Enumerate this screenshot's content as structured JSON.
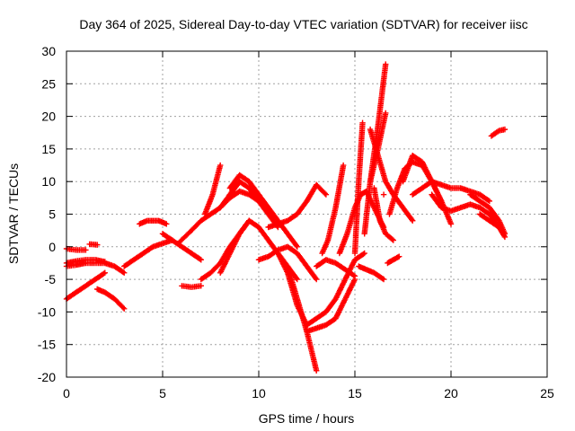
{
  "chart_data": {
    "type": "scatter",
    "title": "Day 364 of 2025, Sidereal Day-to-day VTEC variation (SDTVAR) for receiver iisc",
    "xlabel": "GPS time / hours",
    "ylabel": "SDTVAR / TECUs",
    "xlim": [
      0,
      25
    ],
    "ylim": [
      -20,
      30
    ],
    "xticks": [
      0,
      5,
      10,
      15,
      20,
      25
    ],
    "yticks": [
      -20,
      -15,
      -10,
      -5,
      0,
      5,
      10,
      15,
      20,
      25,
      30
    ],
    "xtick_labels": [
      "0",
      "5",
      "10",
      "15",
      "20",
      "25"
    ],
    "ytick_labels": [
      "-20",
      "-15",
      "-10",
      "-5",
      "0",
      "5",
      "10",
      "15",
      "20",
      "25",
      "30"
    ],
    "grid": true,
    "marker": "plus",
    "color": "#ff0000",
    "series": [
      {
        "x": [
          0.0,
          0.5,
          1.0,
          1.5,
          2.0
        ],
        "y": [
          -8.0,
          -7.0,
          -6.0,
          -5.0,
          -4.0
        ]
      },
      {
        "x": [
          0.0,
          0.5,
          1.0,
          1.5,
          2.0,
          2.5,
          3.0
        ],
        "y": [
          -3.0,
          -2.8,
          -2.5,
          -2.5,
          -2.5,
          -3.0,
          -4.0
        ]
      },
      {
        "x": [
          0.0,
          0.5,
          1.0,
          1.5,
          2.0
        ],
        "y": [
          -2.5,
          -2.2,
          -2.0,
          -2.0,
          -2.3
        ]
      },
      {
        "x": [
          0.0,
          0.5,
          1.0
        ],
        "y": [
          -0.3,
          -0.5,
          -0.5
        ]
      },
      {
        "x": [
          1.2,
          1.6
        ],
        "y": [
          0.4,
          0.3
        ]
      },
      {
        "x": [
          1.6,
          2.0,
          2.5,
          3.0
        ],
        "y": [
          -6.5,
          -7.0,
          -8.0,
          -9.5
        ]
      },
      {
        "x": [
          3.0,
          3.5,
          4.0,
          4.5,
          5.0,
          5.5
        ],
        "y": [
          -3.0,
          -2.0,
          -1.0,
          0.0,
          0.5,
          1.0
        ]
      },
      {
        "x": [
          3.8,
          4.2,
          4.8,
          5.2
        ],
        "y": [
          3.5,
          4.0,
          4.0,
          3.5
        ]
      },
      {
        "x": [
          5.0,
          5.5,
          6.0,
          6.5,
          7.0
        ],
        "y": [
          2.0,
          1.0,
          0.0,
          -1.0,
          -2.0
        ]
      },
      {
        "x": [
          6.0,
          6.5,
          7.0
        ],
        "y": [
          -6.0,
          -6.2,
          -6.0
        ]
      },
      {
        "x": [
          7.0,
          7.5,
          8.0,
          8.5,
          9.0,
          9.5
        ],
        "y": [
          -5.0,
          -4.0,
          -2.5,
          0.0,
          2.0,
          4.0
        ]
      },
      {
        "x": [
          5.8,
          6.5,
          7.0,
          7.5,
          8.0,
          8.5,
          9.0
        ],
        "y": [
          0.5,
          2.5,
          4.0,
          5.0,
          6.0,
          8.0,
          10.0
        ]
      },
      {
        "x": [
          7.2,
          7.6,
          8.0
        ],
        "y": [
          5.0,
          8.0,
          12.5
        ]
      },
      {
        "x": [
          8.5,
          9.0,
          9.5,
          10.0,
          10.5,
          11.0,
          11.5,
          12.0
        ],
        "y": [
          9.0,
          11.0,
          10.0,
          8.0,
          6.0,
          4.0,
          2.0,
          0.0
        ]
      },
      {
        "x": [
          8.5,
          9.0,
          9.5,
          10.0,
          10.5,
          11.0
        ],
        "y": [
          8.0,
          10.0,
          9.0,
          7.0,
          5.0,
          3.0
        ]
      },
      {
        "x": [
          8.0,
          8.5,
          9.0,
          9.5,
          10.0,
          10.5
        ],
        "y": [
          6.0,
          7.5,
          8.5,
          8.0,
          7.0,
          5.0
        ]
      },
      {
        "x": [
          8.0,
          8.5,
          9.0,
          9.5,
          10.0,
          10.5,
          11.0,
          11.5,
          12.0
        ],
        "y": [
          -4.0,
          -1.0,
          2.0,
          4.0,
          3.0,
          1.0,
          -1.0,
          -3.0,
          -5.0
        ]
      },
      {
        "x": [
          10.0,
          10.5,
          11.0,
          11.5,
          12.0,
          12.5,
          13.0
        ],
        "y": [
          -2.0,
          -1.5,
          -0.5,
          0.0,
          -1.0,
          -3.0,
          -5.0
        ]
      },
      {
        "x": [
          10.5,
          11.0,
          11.5,
          12.0,
          12.5,
          13.0,
          13.5
        ],
        "y": [
          3.0,
          3.5,
          4.0,
          5.0,
          7.0,
          9.5,
          8.0
        ]
      },
      {
        "x": [
          11.5,
          12.0,
          12.5,
          13.0
        ],
        "y": [
          -3.0,
          -8.0,
          -13.0,
          -19.0
        ]
      },
      {
        "x": [
          11.0,
          11.5,
          12.0,
          12.5
        ],
        "y": [
          -1.0,
          -4.0,
          -9.0,
          -12.0
        ]
      },
      {
        "x": [
          12.5,
          13.0,
          13.5,
          14.0,
          14.5,
          15.0
        ],
        "y": [
          -13.0,
          -12.5,
          -12.0,
          -11.0,
          -8.0,
          -5.0
        ]
      },
      {
        "x": [
          12.5,
          13.0,
          13.5,
          14.0,
          14.5,
          15.0,
          15.5
        ],
        "y": [
          -12.0,
          -11.0,
          -10.0,
          -8.0,
          -5.0,
          -2.0,
          -1.0
        ]
      },
      {
        "x": [
          13.0,
          13.5,
          14.0,
          14.5,
          15.0
        ],
        "y": [
          -3.0,
          -2.0,
          -2.5,
          -3.5,
          -4.5
        ]
      },
      {
        "x": [
          13.3,
          13.6,
          14.0,
          14.4
        ],
        "y": [
          -1.0,
          1.0,
          6.0,
          12.5
        ]
      },
      {
        "x": [
          14.2,
          14.6,
          15.0,
          15.3,
          15.6,
          16.0,
          16.5
        ],
        "y": [
          -1.0,
          2.0,
          6.0,
          8.0,
          8.5,
          6.0,
          3.0
        ]
      },
      {
        "x": [
          15.0,
          15.2,
          15.4
        ],
        "y": [
          -1.0,
          10.0,
          19.0
        ]
      },
      {
        "x": [
          15.2,
          15.6,
          16.0,
          16.5
        ],
        "y": [
          -3.0,
          -3.5,
          -4.0,
          -5.0
        ]
      },
      {
        "x": [
          15.8,
          16.2,
          16.6
        ],
        "y": [
          10.0,
          18.5,
          28.0
        ]
      },
      {
        "x": [
          15.5,
          15.8,
          16.2,
          16.6
        ],
        "y": [
          2.0,
          10.0,
          15.0,
          20.5
        ]
      },
      {
        "x": [
          15.8,
          16.2,
          16.6,
          17.0,
          17.5,
          18.0
        ],
        "y": [
          18.0,
          14.0,
          10.0,
          8.0,
          6.0,
          4.0
        ]
      },
      {
        "x": [
          16.0,
          16.3,
          16.6,
          17.0
        ],
        "y": [
          9.0,
          4.0,
          2.0,
          1.0
        ]
      },
      {
        "x": [
          16.5
        ],
        "y": [
          8.0
        ]
      },
      {
        "x": [
          16.8,
          17.2,
          17.6,
          18.0,
          18.5,
          19.0,
          19.5
        ],
        "y": [
          5.0,
          9.0,
          12.0,
          13.0,
          12.5,
          10.0,
          7.0
        ]
      },
      {
        "x": [
          16.7,
          17.0,
          17.3
        ],
        "y": [
          -2.5,
          -2.0,
          -1.5
        ]
      },
      {
        "x": [
          17.5,
          18.0,
          18.5,
          19.0,
          19.5,
          20.0
        ],
        "y": [
          10.0,
          14.0,
          13.0,
          10.0,
          7.0,
          3.5
        ]
      },
      {
        "x": [
          18.0,
          18.5,
          19.0,
          19.5,
          20.0,
          20.5,
          21.0,
          21.5,
          22.0
        ],
        "y": [
          8.0,
          9.0,
          10.0,
          9.5,
          9.0,
          9.0,
          8.5,
          8.0,
          7.0
        ]
      },
      {
        "x": [
          19.0,
          19.5,
          20.0,
          20.5,
          21.0,
          21.5,
          22.0,
          22.5
        ],
        "y": [
          8.0,
          6.0,
          5.5,
          6.0,
          6.5,
          6.0,
          5.0,
          3.0
        ]
      },
      {
        "x": [
          21.0,
          21.5,
          22.0,
          22.5,
          22.8
        ],
        "y": [
          8.0,
          7.0,
          6.0,
          4.0,
          2.0
        ]
      },
      {
        "x": [
          21.5,
          22.0,
          22.5,
          22.8
        ],
        "y": [
          5.0,
          4.0,
          3.0,
          1.5
        ]
      },
      {
        "x": [
          22.1,
          22.5,
          22.8
        ],
        "y": [
          17.0,
          17.8,
          18.0
        ]
      }
    ]
  }
}
